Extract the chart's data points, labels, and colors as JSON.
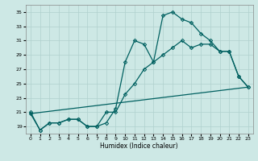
{
  "title": "",
  "xlabel": "Humidex (Indice chaleur)",
  "background_color": "#cde8e5",
  "grid_color": "#b0d0ce",
  "line_color": "#006060",
  "xlim": [
    -0.5,
    23.5
  ],
  "ylim": [
    18,
    36
  ],
  "yticks": [
    19,
    21,
    23,
    25,
    27,
    29,
    31,
    33,
    35
  ],
  "xticks": [
    0,
    1,
    2,
    3,
    4,
    5,
    6,
    7,
    8,
    9,
    10,
    11,
    12,
    13,
    14,
    15,
    16,
    17,
    18,
    19,
    20,
    21,
    22,
    23
  ],
  "series": [
    {
      "x": [
        0,
        1,
        2,
        3,
        4,
        5,
        6,
        7,
        8,
        9,
        10,
        11,
        12,
        13,
        14,
        15,
        16,
        17,
        18,
        19,
        20,
        21,
        22,
        23
      ],
      "y": [
        21,
        18.5,
        19.5,
        19.5,
        20,
        20,
        19,
        19,
        19.5,
        21.5,
        28,
        31,
        30.5,
        28,
        34.5,
        35,
        34,
        33.5,
        32,
        31,
        29.5,
        29.5,
        26,
        24.5
      ],
      "marker": "D",
      "markersize": 2.2,
      "linewidth": 0.9,
      "markerfacecolor": "none"
    },
    {
      "x": [
        0,
        23
      ],
      "y": [
        20.8,
        24.5
      ],
      "marker": null,
      "markersize": 0,
      "linewidth": 0.9
    },
    {
      "x": [
        0,
        1,
        2,
        3,
        4,
        5,
        6,
        7,
        8,
        9,
        10,
        11,
        12,
        13,
        14,
        15,
        16,
        17,
        18,
        19,
        20,
        21,
        22,
        23
      ],
      "y": [
        20.8,
        18.5,
        19.5,
        19.5,
        20,
        20,
        19,
        19,
        21,
        21,
        23.5,
        25,
        27,
        28,
        29,
        30,
        31,
        30,
        30.5,
        30.5,
        29.5,
        29.5,
        26,
        24.5
      ],
      "marker": "D",
      "markersize": 2.2,
      "linewidth": 0.9,
      "markerfacecolor": "none"
    }
  ]
}
